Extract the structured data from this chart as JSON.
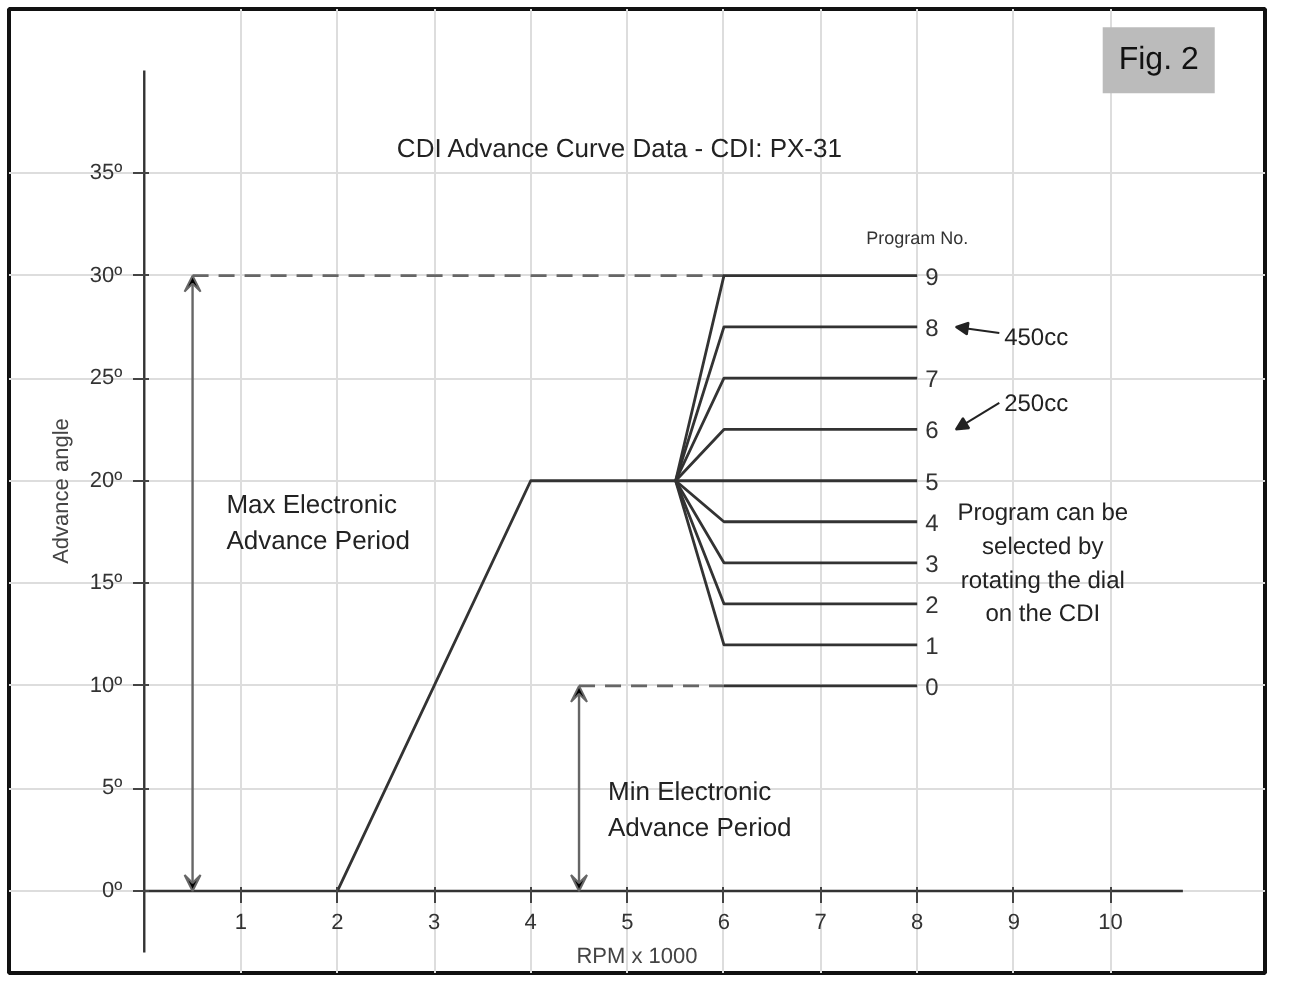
{
  "chart_data": {
    "type": "line",
    "title": "CDI Advance Curve Data  -  CDI: PX-31",
    "xlabel": "RPM x 1000",
    "ylabel": "Advance angle",
    "legend_title": "Program No.",
    "grid": true,
    "marker": "none",
    "xlim": [
      -1.4,
      11.6
    ],
    "ylim": [
      -4,
      43
    ],
    "xticks": [
      1,
      2,
      3,
      4,
      5,
      6,
      7,
      8,
      9,
      10
    ],
    "yticks": [
      {
        "value": 0,
        "label": "0º"
      },
      {
        "value": 5,
        "label": "5º"
      },
      {
        "value": 10,
        "label": "10º"
      },
      {
        "value": 15,
        "label": "15º"
      },
      {
        "value": 20,
        "label": "20º"
      },
      {
        "value": 25,
        "label": "25º"
      },
      {
        "value": 30,
        "label": "30º"
      },
      {
        "value": 35,
        "label": "35º"
      }
    ],
    "series": [
      {
        "x": [
          0.5,
          6
        ],
        "values": [
          30,
          30
        ],
        "color": "#666666",
        "line_style": "dashed"
      },
      {
        "x": [
          4.5,
          6
        ],
        "values": [
          10,
          10
        ],
        "color": "#666666",
        "line_style": "dashed"
      },
      {
        "name": "0",
        "x": [
          6,
          8
        ],
        "values": [
          10,
          10
        ],
        "color": "#333333",
        "line_style": "solid"
      },
      {
        "name": "1",
        "x": [
          5.5,
          6,
          8
        ],
        "values": [
          20,
          12,
          12
        ],
        "color": "#333333",
        "line_style": "solid"
      },
      {
        "name": "2",
        "x": [
          5.5,
          6,
          8
        ],
        "values": [
          20,
          14,
          14
        ],
        "color": "#333333",
        "line_style": "solid"
      },
      {
        "name": "3",
        "x": [
          5.5,
          6,
          8
        ],
        "values": [
          20,
          16,
          16
        ],
        "color": "#333333",
        "line_style": "solid"
      },
      {
        "name": "4",
        "x": [
          5.5,
          6,
          8
        ],
        "values": [
          20,
          18,
          18
        ],
        "color": "#333333",
        "line_style": "solid"
      },
      {
        "name": "5",
        "x": [
          2,
          4,
          5.5,
          8
        ],
        "values": [
          0,
          20,
          20,
          20
        ],
        "color": "#333333",
        "line_style": "solid"
      },
      {
        "name": "6",
        "x": [
          5.5,
          6,
          8
        ],
        "values": [
          20,
          22.5,
          22.5
        ],
        "color": "#333333",
        "line_style": "solid"
      },
      {
        "name": "7",
        "x": [
          5.5,
          6,
          8
        ],
        "values": [
          20,
          25,
          25
        ],
        "color": "#333333",
        "line_style": "solid"
      },
      {
        "name": "8",
        "x": [
          5.5,
          6,
          8
        ],
        "values": [
          20,
          27.5,
          27.5
        ],
        "color": "#333333",
        "line_style": "solid"
      },
      {
        "name": "9",
        "x": [
          5.5,
          6,
          8
        ],
        "values": [
          20,
          30,
          30
        ],
        "color": "#333333",
        "line_style": "solid"
      }
    ],
    "annotations": [
      "Max Electronic\nAdvance Period",
      "Min Electronic\nAdvance Period",
      "450cc",
      "250cc",
      "Program can be\nselected by\nrotating the dial\non the CDI",
      "Fig. 2"
    ]
  }
}
